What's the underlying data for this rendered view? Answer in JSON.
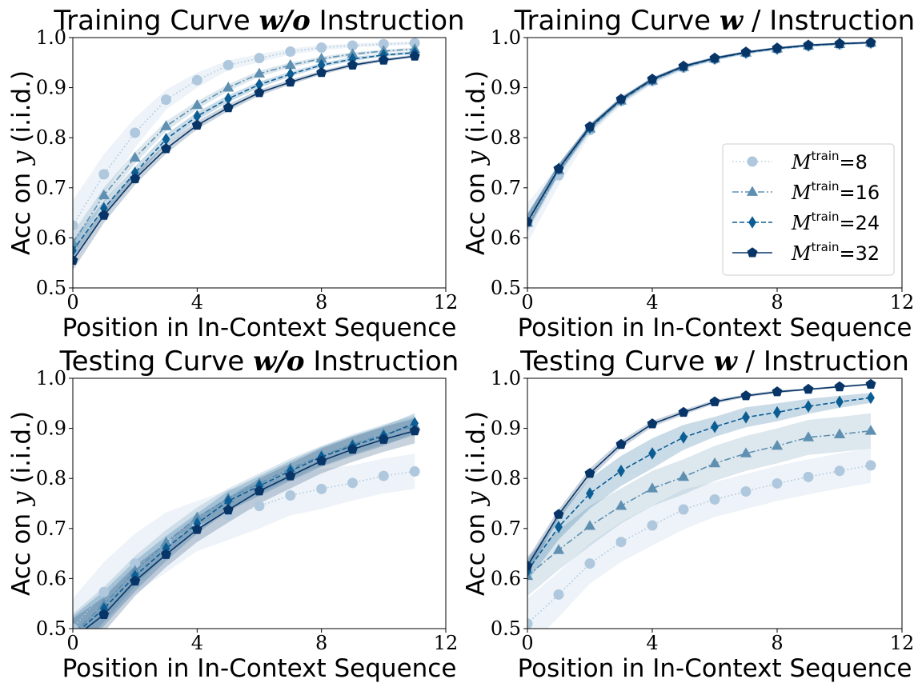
{
  "chart_data": [
    {
      "type": "line",
      "title_prefix": "Training Curve",
      "title_math": "w/o",
      "title_suffix": "Instruction",
      "xlabel": "Position in In-Context Sequence",
      "ylabel_prefix": "Acc on",
      "ylabel_var": "y",
      "ylabel_suffix": "(i.i.d.)",
      "xlim": [
        0,
        12
      ],
      "ylim": [
        0.5,
        1.0
      ],
      "xticks": [
        "0",
        "4",
        "8",
        "12"
      ],
      "yticks": [
        "0.5",
        "0.6",
        "0.7",
        "0.8",
        "0.9",
        "1.0"
      ],
      "x": [
        0,
        1,
        2,
        3,
        4,
        5,
        6,
        7,
        8,
        9,
        10,
        11
      ],
      "legend": false,
      "series": [
        {
          "name": "8",
          "values": [
            0.625,
            0.727,
            0.81,
            0.876,
            0.915,
            0.945,
            0.959,
            0.972,
            0.98,
            0.984,
            0.987,
            0.989
          ],
          "band": [
            0.05,
            0.04,
            0.03,
            0.02,
            0.015,
            0.01,
            0.008,
            0.006,
            0.005,
            0.004,
            0.004,
            0.003
          ]
        },
        {
          "name": "16",
          "values": [
            0.59,
            0.685,
            0.76,
            0.823,
            0.865,
            0.9,
            0.928,
            0.945,
            0.958,
            0.967,
            0.973,
            0.977
          ],
          "band": [
            0.02,
            0.015,
            0.012,
            0.01,
            0.008,
            0.007,
            0.006,
            0.005,
            0.004,
            0.004,
            0.003,
            0.003
          ]
        },
        {
          "name": "24",
          "values": [
            0.575,
            0.659,
            0.73,
            0.797,
            0.843,
            0.878,
            0.906,
            0.927,
            0.945,
            0.957,
            0.965,
            0.97
          ],
          "band": [
            0.02,
            0.015,
            0.012,
            0.01,
            0.008,
            0.007,
            0.006,
            0.005,
            0.004,
            0.004,
            0.003,
            0.003
          ]
        },
        {
          "name": "32",
          "values": [
            0.555,
            0.645,
            0.718,
            0.778,
            0.825,
            0.86,
            0.89,
            0.911,
            0.93,
            0.945,
            0.955,
            0.963
          ],
          "band": [
            0.02,
            0.015,
            0.012,
            0.01,
            0.008,
            0.007,
            0.006,
            0.005,
            0.004,
            0.004,
            0.003,
            0.003
          ]
        }
      ]
    },
    {
      "type": "line",
      "title_prefix": "Training Curve",
      "title_math": "w",
      "title_suffix": "/ Instruction",
      "xlabel": "Position in In-Context Sequence",
      "ylabel_prefix": "Acc on",
      "ylabel_var": "y",
      "ylabel_suffix": "(i.i.d.)",
      "xlim": [
        0,
        12
      ],
      "ylim": [
        0.5,
        1.0
      ],
      "xticks": [
        "0",
        "4",
        "8",
        "12"
      ],
      "yticks": [
        "0.5",
        "0.6",
        "0.7",
        "0.8",
        "0.9",
        "1.0"
      ],
      "x": [
        0,
        1,
        2,
        3,
        4,
        5,
        6,
        7,
        8,
        9,
        10,
        11
      ],
      "legend": true,
      "legend_position": "center-right",
      "series": [
        {
          "name": "8",
          "values": [
            0.63,
            0.725,
            0.815,
            0.873,
            0.913,
            0.94,
            0.957,
            0.969,
            0.977,
            0.983,
            0.986,
            0.989
          ],
          "band": [
            0.04,
            0.02,
            0.01,
            0.008,
            0.006,
            0.005,
            0.004,
            0.003,
            0.003,
            0.002,
            0.002,
            0.002
          ]
        },
        {
          "name": "16",
          "values": [
            0.63,
            0.735,
            0.818,
            0.874,
            0.914,
            0.941,
            0.958,
            0.97,
            0.978,
            0.984,
            0.987,
            0.99
          ],
          "band": [
            0.02,
            0.01,
            0.008,
            0.006,
            0.005,
            0.004,
            0.003,
            0.003,
            0.002,
            0.002,
            0.002,
            0.002
          ]
        },
        {
          "name": "24",
          "values": [
            0.632,
            0.738,
            0.82,
            0.876,
            0.916,
            0.942,
            0.958,
            0.97,
            0.978,
            0.984,
            0.988,
            0.99
          ],
          "band": [
            0.015,
            0.01,
            0.006,
            0.005,
            0.004,
            0.003,
            0.003,
            0.002,
            0.002,
            0.002,
            0.002,
            0.002
          ]
        },
        {
          "name": "32",
          "values": [
            0.632,
            0.738,
            0.822,
            0.877,
            0.917,
            0.943,
            0.959,
            0.971,
            0.979,
            0.985,
            0.988,
            0.99
          ],
          "band": [
            0.015,
            0.01,
            0.006,
            0.005,
            0.004,
            0.003,
            0.003,
            0.002,
            0.002,
            0.002,
            0.002,
            0.002
          ]
        }
      ]
    },
    {
      "type": "line",
      "title_prefix": "Testing Curve",
      "title_math": "w/o",
      "title_suffix": "Instruction",
      "xlabel": "Position in In-Context Sequence",
      "ylabel_prefix": "Acc on",
      "ylabel_var": "y",
      "ylabel_suffix": "(i.i.d.)",
      "xlim": [
        0,
        12
      ],
      "ylim": [
        0.5,
        1.0
      ],
      "xticks": [
        "0",
        "4",
        "8",
        "12"
      ],
      "yticks": [
        "0.5",
        "0.6",
        "0.7",
        "0.8",
        "0.9",
        "1.0"
      ],
      "x": [
        0,
        1,
        2,
        3,
        4,
        5,
        6,
        7,
        8,
        9,
        10,
        11
      ],
      "legend": false,
      "series": [
        {
          "name": "8",
          "values": [
            0.5,
            0.573,
            0.63,
            0.672,
            0.705,
            0.727,
            0.745,
            0.766,
            0.779,
            0.791,
            0.805,
            0.814
          ],
          "band": [
            0.06,
            0.06,
            0.06,
            0.06,
            0.05,
            0.05,
            0.045,
            0.04,
            0.04,
            0.035,
            0.035,
            0.035
          ]
        },
        {
          "name": "16",
          "values": [
            0.49,
            0.548,
            0.615,
            0.672,
            0.722,
            0.76,
            0.79,
            0.82,
            0.845,
            0.868,
            0.888,
            0.905
          ],
          "band": [
            0.04,
            0.035,
            0.03,
            0.025,
            0.02,
            0.02,
            0.02,
            0.02,
            0.02,
            0.02,
            0.02,
            0.02
          ]
        },
        {
          "name": "24",
          "values": [
            0.485,
            0.54,
            0.605,
            0.66,
            0.71,
            0.755,
            0.785,
            0.815,
            0.843,
            0.865,
            0.885,
            0.91
          ],
          "band": [
            0.04,
            0.035,
            0.03,
            0.025,
            0.02,
            0.02,
            0.02,
            0.02,
            0.02,
            0.02,
            0.02,
            0.02
          ]
        },
        {
          "name": "32",
          "values": [
            0.48,
            0.528,
            0.595,
            0.648,
            0.698,
            0.737,
            0.775,
            0.805,
            0.835,
            0.858,
            0.878,
            0.895
          ],
          "band": [
            0.04,
            0.035,
            0.03,
            0.025,
            0.025,
            0.025,
            0.025,
            0.025,
            0.025,
            0.025,
            0.025,
            0.025
          ]
        }
      ]
    },
    {
      "type": "line",
      "title_prefix": "Testing Curve",
      "title_math": "w",
      "title_suffix": "/ Instruction",
      "xlabel": "Position in In-Context Sequence",
      "ylabel_prefix": "Acc on",
      "ylabel_var": "y",
      "ylabel_suffix": "(i.i.d.)",
      "xlim": [
        0,
        12
      ],
      "ylim": [
        0.5,
        1.0
      ],
      "xticks": [
        "0",
        "4",
        "8",
        "12"
      ],
      "yticks": [
        "0.5",
        "0.6",
        "0.7",
        "0.8",
        "0.9",
        "1.0"
      ],
      "x": [
        0,
        1,
        2,
        3,
        4,
        5,
        6,
        7,
        8,
        9,
        10,
        11
      ],
      "legend": false,
      "series": [
        {
          "name": "8",
          "values": [
            0.51,
            0.568,
            0.63,
            0.673,
            0.706,
            0.738,
            0.758,
            0.774,
            0.79,
            0.803,
            0.815,
            0.826
          ],
          "band": [
            0.05,
            0.045,
            0.04,
            0.04,
            0.04,
            0.04,
            0.035,
            0.035,
            0.035,
            0.035,
            0.035,
            0.035
          ]
        },
        {
          "name": "16",
          "values": [
            0.605,
            0.657,
            0.705,
            0.745,
            0.78,
            0.803,
            0.83,
            0.85,
            0.865,
            0.882,
            0.888,
            0.895
          ],
          "band": [
            0.04,
            0.04,
            0.04,
            0.035,
            0.035,
            0.035,
            0.035,
            0.035,
            0.035,
            0.035,
            0.035,
            0.035
          ]
        },
        {
          "name": "24",
          "values": [
            0.615,
            0.703,
            0.77,
            0.815,
            0.85,
            0.882,
            0.903,
            0.922,
            0.932,
            0.944,
            0.953,
            0.961
          ],
          "band": [
            0.02,
            0.025,
            0.03,
            0.03,
            0.03,
            0.025,
            0.02,
            0.02,
            0.018,
            0.015,
            0.012,
            0.01
          ]
        },
        {
          "name": "32",
          "values": [
            0.625,
            0.728,
            0.81,
            0.868,
            0.909,
            0.932,
            0.953,
            0.965,
            0.973,
            0.978,
            0.983,
            0.988
          ],
          "band": [
            0.015,
            0.01,
            0.01,
            0.008,
            0.006,
            0.005,
            0.004,
            0.003,
            0.003,
            0.002,
            0.002,
            0.002
          ]
        }
      ]
    }
  ],
  "legend_label_base": "M",
  "legend_label_sup": "train",
  "legend_label_eq": "=",
  "series_colors": [
    "#afc8dd",
    "#5f90b1",
    "#0b5d93",
    "#083567"
  ],
  "series_markers": [
    "circle",
    "triangle",
    "diamond",
    "pentagon"
  ],
  "series_dashes": [
    "dotted",
    "dashdot",
    "dashed",
    "solid"
  ]
}
